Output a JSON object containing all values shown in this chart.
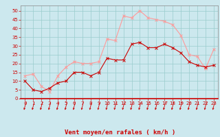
{
  "hours": [
    0,
    1,
    2,
    3,
    4,
    5,
    6,
    7,
    8,
    9,
    10,
    11,
    12,
    13,
    14,
    15,
    16,
    17,
    18,
    19,
    20,
    21,
    22,
    23
  ],
  "wind_avg": [
    10,
    5,
    4,
    6,
    9,
    10,
    15,
    15,
    13,
    15,
    23,
    22,
    22,
    31,
    32,
    29,
    29,
    31,
    29,
    26,
    21,
    19,
    18,
    19
  ],
  "wind_gust": [
    13,
    14,
    7,
    4,
    13,
    18,
    21,
    20,
    20,
    21,
    34,
    33,
    47,
    46,
    50,
    46,
    45,
    44,
    42,
    36,
    25,
    24,
    17,
    28
  ],
  "bg_color": "#cce8ee",
  "grid_color": "#99cccc",
  "avg_color": "#cc0000",
  "gust_color": "#ff9999",
  "xlabel": "Vent moyen/en rafales ( km/h )",
  "xlabel_color": "#cc0000",
  "xlabel_fontsize": 6.5,
  "tick_color": "#cc0000",
  "tick_fontsize": 5.0,
  "ylim": [
    0,
    53
  ],
  "yticks": [
    0,
    5,
    10,
    15,
    20,
    25,
    30,
    35,
    40,
    45,
    50
  ],
  "arrow_color": "#cc0000",
  "spine_color": "#888888"
}
